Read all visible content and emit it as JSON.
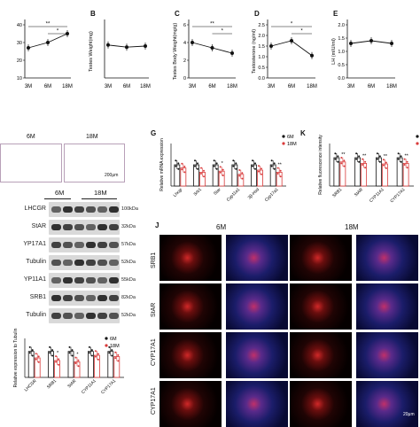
{
  "panels": {
    "A": "",
    "B": "B",
    "C": "C",
    "D": "D",
    "E": "E",
    "G": "G",
    "K": "K",
    "J": "J"
  },
  "line_charts": {
    "ages": [
      "3M",
      "6M",
      "18M"
    ],
    "A": {
      "ylabel": "",
      "ticks": [
        "10",
        "20",
        "30",
        "40"
      ],
      "sig": [
        "**",
        "*"
      ]
    },
    "B": {
      "ylabel": "Testes Weight(mg)",
      "ticks": [],
      "sig": []
    },
    "C": {
      "ylabel": "Testes Body Weight(mg/g)",
      "ticks": [
        "0",
        "2",
        "4",
        "6"
      ],
      "sig": [
        "**",
        "*"
      ]
    },
    "D": {
      "ylabel": "Testosterone (ng/ml)",
      "ticks": [
        "0.0",
        "0.5",
        "1.0",
        "1.5",
        "2.0",
        "2.5"
      ],
      "sig": [
        "*",
        "*"
      ]
    },
    "E": {
      "ylabel": "LH (mIU/ml)",
      "ticks": [
        "0.0",
        "0.5",
        "1.0",
        "1.5",
        "2.0"
      ],
      "sig": []
    }
  },
  "chart_data": [
    {
      "type": "line",
      "panel": "A",
      "x": [
        "3M",
        "6M",
        "18M"
      ],
      "values": [
        27,
        30,
        35
      ],
      "ylim": [
        10,
        40
      ]
    },
    {
      "type": "line",
      "panel": "B",
      "x": [
        "3M",
        "6M",
        "18M"
      ],
      "values": [
        0.62,
        0.58,
        0.6
      ],
      "ylim": [
        0,
        1
      ]
    },
    {
      "type": "line",
      "panel": "C",
      "x": [
        "3M",
        "6M",
        "18M"
      ],
      "values": [
        4.0,
        3.4,
        2.8
      ],
      "ylim": [
        0,
        6
      ]
    },
    {
      "type": "line",
      "panel": "D",
      "x": [
        "3M",
        "6M",
        "18M"
      ],
      "values": [
        1.5,
        1.75,
        1.05
      ],
      "ylim": [
        0,
        2.5
      ]
    },
    {
      "type": "line",
      "panel": "E",
      "x": [
        "3M",
        "6M",
        "18M"
      ],
      "values": [
        1.3,
        1.4,
        1.3
      ],
      "ylim": [
        0,
        2
      ]
    },
    {
      "type": "bar",
      "panel": "G",
      "ylabel": "Relative mRNA expression",
      "categories": [
        "Lhcgr",
        "Srb1",
        "Star",
        "Cyp11a1",
        "3β-Hsd",
        "Cyp17a1"
      ],
      "series": [
        {
          "name": "6M",
          "values": [
            1.0,
            1.0,
            1.0,
            1.0,
            1.0,
            1.0
          ]
        },
        {
          "name": "18M",
          "values": [
            0.85,
            0.65,
            0.7,
            0.55,
            0.75,
            0.65
          ]
        }
      ],
      "sig": [
        "",
        "",
        "*",
        "",
        "",
        "**"
      ],
      "ylim": [
        0,
        2
      ]
    },
    {
      "type": "bar",
      "panel": "K",
      "ylabel": "Relative fluorescence intensity",
      "categories": [
        "SRB1",
        "StAR",
        "CYP11A1",
        "CYP17A1"
      ],
      "series": [
        {
          "name": "6M",
          "values": [
            1.0,
            1.0,
            1.0,
            1.0
          ]
        },
        {
          "name": "18M",
          "values": [
            0.85,
            0.8,
            0.78,
            0.8
          ]
        }
      ],
      "sig": [
        "**",
        "**",
        "**",
        "**"
      ],
      "ylim": [
        0,
        1.5
      ]
    },
    {
      "type": "bar",
      "panel": "blot-quant",
      "ylabel": "Relative expression to Tubulin",
      "categories": [
        "LHCGR",
        "SRB1",
        "StAR",
        "CYP11A1",
        "CYP17A1"
      ],
      "series": [
        {
          "name": "6M",
          "values": [
            1.0,
            1.0,
            1.0,
            1.0,
            1.0
          ]
        },
        {
          "name": "18M",
          "values": [
            0.75,
            0.65,
            0.6,
            0.85,
            0.8
          ]
        }
      ],
      "sig": [
        "",
        "*",
        "*",
        "",
        ""
      ],
      "ylim": [
        0,
        1.5
      ]
    }
  ],
  "histology": {
    "labels": [
      "6M",
      "18M"
    ],
    "scalebar": "200μm"
  },
  "blot": {
    "groups": [
      "6M",
      "18M"
    ],
    "rows": [
      {
        "name": "LHCGR",
        "kda": "100kDa"
      },
      {
        "name": "StAR",
        "kda": "32kDa"
      },
      {
        "name": "YP17A1",
        "kda": "57kDa"
      },
      {
        "name": "Tubulin",
        "kda": "52kDa"
      },
      {
        "name": "YP11A1",
        "kda": "55kDa"
      },
      {
        "name": "SRB1",
        "kda": "82kDa"
      },
      {
        "name": "Tubulin",
        "kda": "52kDa"
      }
    ]
  },
  "legend": {
    "s1": "6M",
    "s2": "18M",
    "color1": "#111111",
    "color2": "#d93a3a"
  },
  "if_panel": {
    "columns": [
      "6M",
      "18M"
    ],
    "rows": [
      "SRB1",
      "StAR",
      "CYP17A1",
      "CYP17A1"
    ],
    "scalebar": "20μm"
  }
}
